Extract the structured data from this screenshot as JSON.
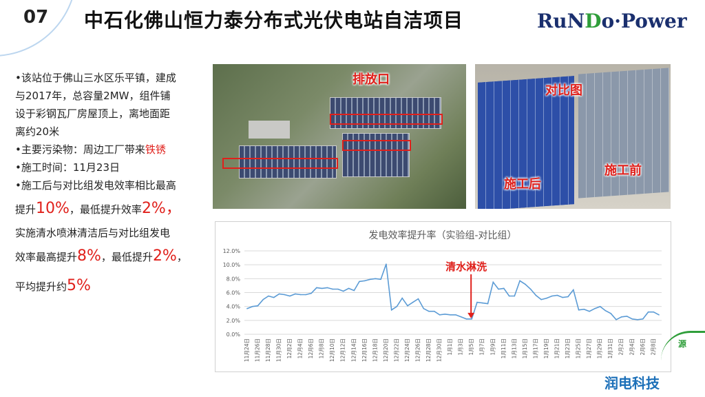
{
  "slide": {
    "number": "07",
    "title": "中石化佛山恒力泰分布式光伏电站自洁项目",
    "logo": {
      "part1": "RuN",
      "leaf": "D",
      "part2": "o·Power"
    },
    "brand_bottom": "润电科技",
    "corner_mark": "源"
  },
  "bullets": {
    "b1_l1": "•该站位于佛山三水区乐平镇，建成",
    "b1_l2": "与2017年，总容量2MW，组件铺",
    "b1_l3": "设于彩钢瓦厂房屋顶上，离地面距",
    "b1_l4": "离约20米",
    "b2_pre": "•主要污染物：周边工厂带来",
    "b2_red": "铁锈",
    "b3": "•施工时间：11月23日",
    "b4_l1": "•施工后与对比组发电效率相比最高",
    "b4_l2_a": "提升",
    "b4_l2_v1": "10%",
    "b4_l2_b": "，最低提升效率",
    "b4_l2_v2": "2%",
    "b4_l2_c": "，",
    "b4_l3": "实施清水喷淋清洁后与对比组发电",
    "b4_l4_a": "效率最高提升",
    "b4_l4_v1": "8%",
    "b4_l4_b": "，最低提升",
    "b4_l4_v2": "2%",
    "b4_l4_c": "，",
    "b4_l5_a": "平均提升约",
    "b4_l5_v": "5%"
  },
  "photos": {
    "aerial_label": "排放口",
    "compare_label": "对比图",
    "after_label": "施工后",
    "before_label": "施工前"
  },
  "chart_data": {
    "type": "line",
    "title": "发电效率提升率（实验组-对比组）",
    "annotation": "清水淋洗",
    "annotation_x": "1月5日",
    "ylim": [
      0,
      0.12
    ],
    "yticks": [
      "0.0%",
      "2.0%",
      "4.0%",
      "6.0%",
      "8.0%",
      "10.0%",
      "12.0%"
    ],
    "grid": true,
    "color": "#5b9bd5",
    "x": [
      "11月24日",
      "11月25日",
      "11月26日",
      "11月27日",
      "11月28日",
      "11月29日",
      "11月30日",
      "12月1日",
      "12月2日",
      "12月3日",
      "12月4日",
      "12月5日",
      "12月6日",
      "12月7日",
      "12月8日",
      "12月9日",
      "12月10日",
      "12月11日",
      "12月12日",
      "12月13日",
      "12月14日",
      "12月15日",
      "12月16日",
      "12月17日",
      "12月18日",
      "12月19日",
      "12月20日",
      "12月21日",
      "12月22日",
      "12月23日",
      "12月24日",
      "12月25日",
      "12月26日",
      "12月27日",
      "12月28日",
      "12月29日",
      "12月30日",
      "12月31日",
      "1月1日",
      "1月2日",
      "1月3日",
      "1月4日",
      "1月5日",
      "1月6日",
      "1月7日",
      "1月8日",
      "1月9日",
      "1月10日",
      "1月11日",
      "1月12日",
      "1月13日",
      "1月14日",
      "1月15日",
      "1月16日",
      "1月17日",
      "1月18日",
      "1月19日",
      "1月20日",
      "1月21日",
      "1月22日",
      "1月23日",
      "1月24日",
      "1月25日",
      "1月26日",
      "1月27日",
      "1月28日",
      "1月29日",
      "1月30日",
      "1月31日",
      "2月1日",
      "2月2日",
      "2月3日",
      "2月4日",
      "2月5日",
      "2月6日",
      "2月7日",
      "2月8日",
      "2月9日"
    ],
    "values": [
      0.037,
      0.04,
      0.041,
      0.05,
      0.055,
      0.053,
      0.058,
      0.057,
      0.055,
      0.058,
      0.057,
      0.057,
      0.059,
      0.067,
      0.066,
      0.067,
      0.065,
      0.065,
      0.062,
      0.066,
      0.063,
      0.076,
      0.077,
      0.079,
      0.08,
      0.079,
      0.101,
      0.035,
      0.04,
      0.052,
      0.041,
      0.046,
      0.051,
      0.037,
      0.033,
      0.033,
      0.028,
      0.029,
      0.028,
      0.028,
      0.025,
      0.022,
      0.022,
      0.046,
      0.045,
      0.044,
      0.075,
      0.065,
      0.066,
      0.055,
      0.055,
      0.077,
      0.072,
      0.065,
      0.056,
      0.05,
      0.052,
      0.055,
      0.056,
      0.053,
      0.054,
      0.064,
      0.035,
      0.036,
      0.033,
      0.037,
      0.04,
      0.034,
      0.03,
      0.021,
      0.025,
      0.026,
      0.022,
      0.021,
      0.022,
      0.032,
      0.032,
      0.028
    ],
    "xtick_labels": [
      "11月24日",
      "11月26日",
      "11月28日",
      "11月30日",
      "12月2日",
      "12月4日",
      "12月6日",
      "12月8日",
      "12月10日",
      "12月12日",
      "12月14日",
      "12月16日",
      "12月18日",
      "12月20日",
      "12月22日",
      "12月24日",
      "12月26日",
      "12月28日",
      "12月30日",
      "1月1日",
      "1月3日",
      "1月5日",
      "1月7日",
      "1月9日",
      "1月11日",
      "1月13日",
      "1月15日",
      "1月17日",
      "1月19日",
      "1月21日",
      "1月23日",
      "1月25日",
      "1月27日",
      "1月29日",
      "1月31日",
      "2月2日",
      "2月4日",
      "2月6日",
      "2月8日"
    ]
  }
}
